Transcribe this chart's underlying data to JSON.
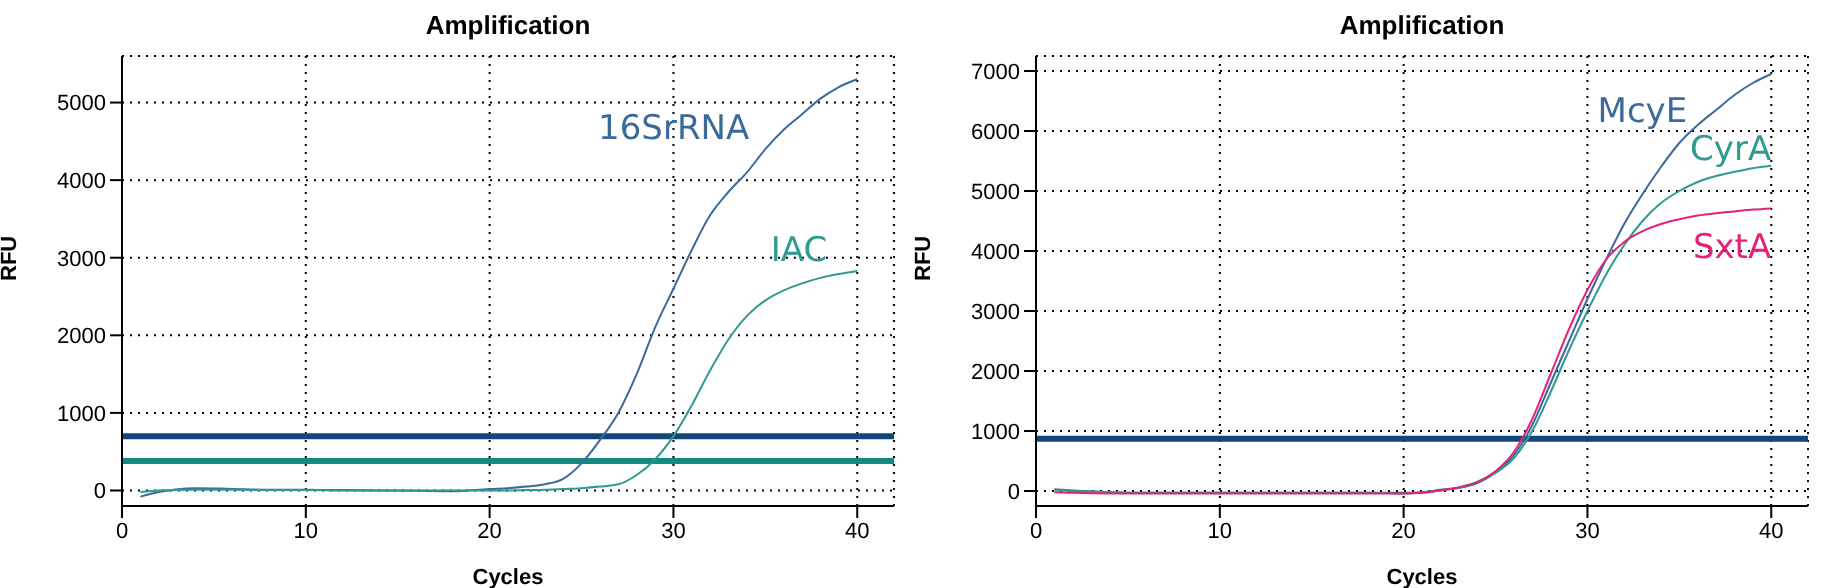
{
  "chart_data": [
    {
      "type": "line",
      "title": "Amplification",
      "xlabel": "Cycles",
      "ylabel": "RFU",
      "xlim": [
        0,
        42
      ],
      "xticks": [
        0,
        10,
        20,
        30,
        40
      ],
      "ylim": [
        -200,
        5600
      ],
      "yticks": [
        0,
        1000,
        2000,
        3000,
        4000,
        5000
      ],
      "grid": true,
      "marker": "none",
      "line_style": "solid",
      "x": [
        1,
        2,
        4,
        6,
        8,
        10,
        12,
        14,
        16,
        18,
        20,
        21,
        22,
        23,
        24,
        25,
        26,
        27,
        28,
        29,
        30,
        31,
        32,
        33,
        34,
        35,
        36,
        37,
        38,
        39,
        40
      ],
      "series": [
        {
          "name": "16SrRNA",
          "color": "#3b6a9a",
          "values": [
            -80,
            -20,
            30,
            20,
            10,
            10,
            5,
            0,
            -5,
            -10,
            20,
            30,
            50,
            80,
            150,
            350,
            650,
            1000,
            1500,
            2100,
            2600,
            3100,
            3550,
            3850,
            4100,
            4400,
            4650,
            4850,
            5050,
            5200,
            5300
          ]
        },
        {
          "name": "IAC",
          "color": "#2e9a90",
          "values": [
            -20,
            0,
            10,
            10,
            5,
            5,
            0,
            0,
            0,
            0,
            0,
            0,
            5,
            10,
            20,
            30,
            50,
            80,
            200,
            400,
            700,
            1100,
            1550,
            1950,
            2250,
            2450,
            2580,
            2670,
            2740,
            2790,
            2830
          ]
        }
      ],
      "ref_lines": [
        {
          "axis": "y",
          "value": 700,
          "color": "#12467a"
        },
        {
          "axis": "y",
          "value": 380,
          "color": "#138a80"
        }
      ]
    },
    {
      "type": "line",
      "title": "Amplification",
      "xlabel": "Cycles",
      "ylabel": "RFU",
      "xlim": [
        0,
        42
      ],
      "xticks": [
        0,
        10,
        20,
        30,
        40
      ],
      "ylim": [
        -250,
        7250
      ],
      "yticks": [
        0,
        1000,
        2000,
        3000,
        4000,
        5000,
        6000,
        7000
      ],
      "grid": true,
      "marker": "none",
      "line_style": "solid",
      "x": [
        1,
        2,
        4,
        6,
        8,
        10,
        12,
        14,
        16,
        18,
        20,
        21,
        22,
        23,
        24,
        25,
        26,
        27,
        28,
        29,
        30,
        31,
        32,
        33,
        34,
        35,
        36,
        37,
        38,
        39,
        40
      ],
      "series": [
        {
          "name": "McyE",
          "color": "#3b6a9a",
          "values": [
            30,
            10,
            -20,
            -30,
            -30,
            -30,
            -30,
            -30,
            -30,
            -30,
            -30,
            -20,
            20,
            60,
            150,
            320,
            600,
            1100,
            1800,
            2500,
            3200,
            3850,
            4450,
            4950,
            5400,
            5800,
            6100,
            6350,
            6600,
            6800,
            6950
          ]
        },
        {
          "name": "CyrA",
          "color": "#2e9a90",
          "values": [
            20,
            0,
            -20,
            -30,
            -30,
            -30,
            -30,
            -30,
            -30,
            -30,
            -40,
            -30,
            10,
            50,
            130,
            300,
            550,
            1000,
            1650,
            2350,
            3000,
            3600,
            4100,
            4500,
            4800,
            5000,
            5150,
            5250,
            5320,
            5380,
            5420
          ]
        },
        {
          "name": "SxtA",
          "color": "#e8207a",
          "values": [
            -20,
            -30,
            -40,
            -40,
            -40,
            -40,
            -40,
            -40,
            -40,
            -40,
            -40,
            -30,
            10,
            60,
            140,
            330,
            650,
            1200,
            1950,
            2700,
            3350,
            3850,
            4150,
            4330,
            4450,
            4530,
            4590,
            4630,
            4660,
            4690,
            4710
          ]
        }
      ],
      "ref_lines": [
        {
          "axis": "y",
          "value": 870,
          "color": "#12467a"
        }
      ]
    }
  ]
}
